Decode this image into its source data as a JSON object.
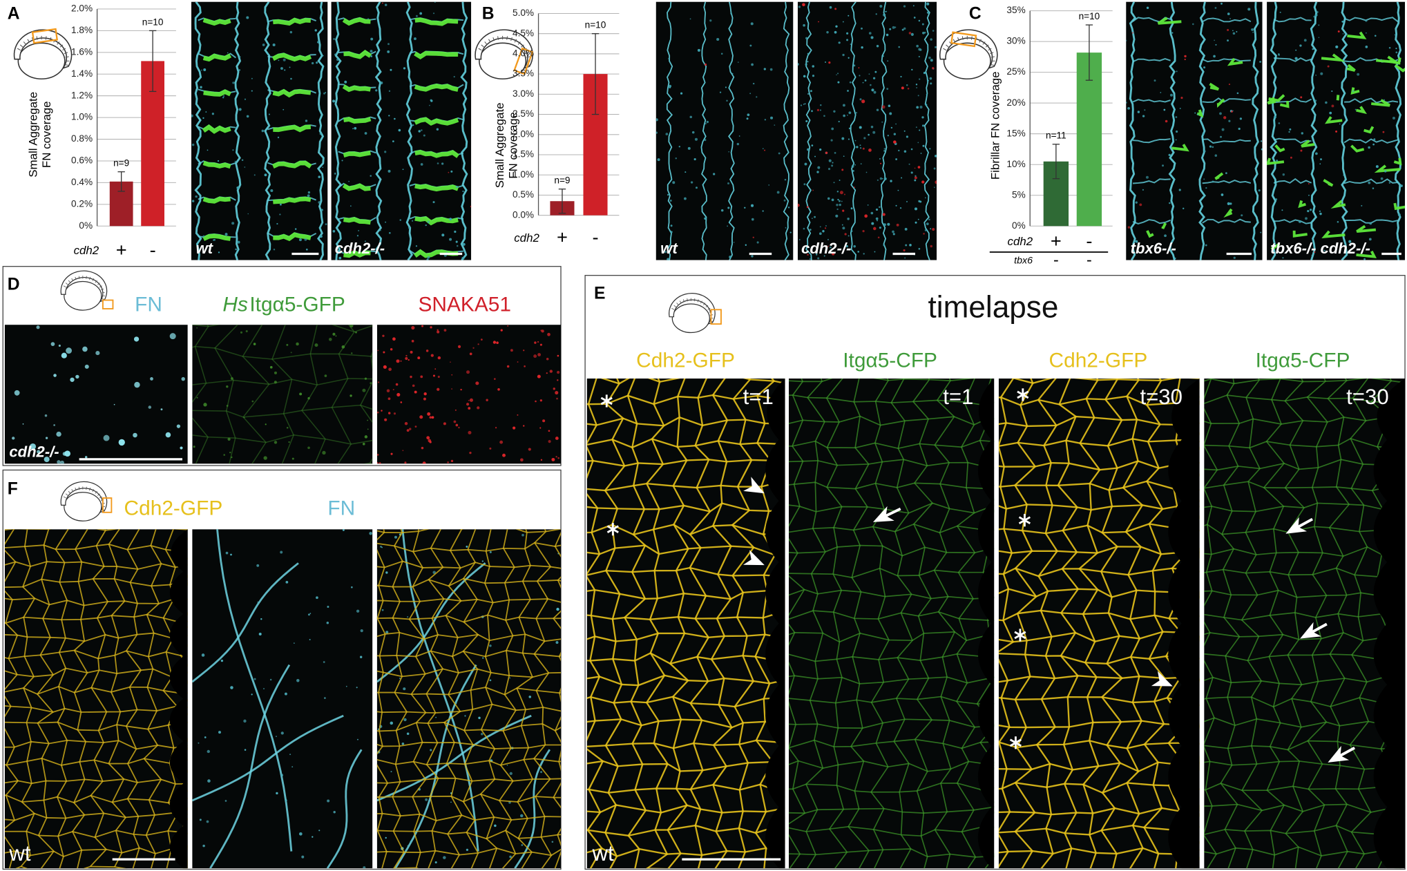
{
  "panel_labels": [
    "A",
    "B",
    "C",
    "D",
    "E",
    "F"
  ],
  "chart_data": [
    {
      "type": "bar",
      "y_label": [
        "Small Aggregate",
        "FN coverage"
      ],
      "x_label": "cdh2",
      "categories": [
        "+",
        "-"
      ],
      "values": [
        0.41,
        1.52
      ],
      "errors": [
        0.09,
        0.28
      ],
      "n_labels": [
        "n=9",
        "n=10"
      ],
      "colors": [
        "#9e1f27",
        "#cf2128"
      ],
      "ylim": [
        0,
        2
      ],
      "yticks": [
        {
          "value": 0,
          "label": "0%"
        },
        {
          "value": 0.2,
          "label": "0.2%"
        },
        {
          "value": 0.4,
          "label": "0.4%"
        },
        {
          "value": 0.6,
          "label": "0.6%"
        },
        {
          "value": 0.8,
          "label": "0.8%"
        },
        {
          "value": 1,
          "label": "1.0%"
        },
        {
          "value": 1.2,
          "label": "1.2%"
        },
        {
          "value": 1.4,
          "label": "1.4%"
        },
        {
          "value": 1.6,
          "label": "1.6%"
        },
        {
          "value": 1.8,
          "label": "1.8%"
        },
        {
          "value": 2,
          "label": "2.0%"
        }
      ],
      "grid": true
    },
    {
      "type": "bar",
      "y_label": [
        "Small Aggregate",
        "FN coverage"
      ],
      "x_label": "cdh2",
      "categories": [
        "+",
        "-"
      ],
      "values": [
        0.35,
        3.5
      ],
      "errors": [
        0.3,
        1.0
      ],
      "n_labels": [
        "n=9",
        "n=10"
      ],
      "colors": [
        "#9e1f27",
        "#cf2128"
      ],
      "ylim": [
        0,
        5
      ],
      "yticks": [
        {
          "value": 0,
          "label": "0.0%"
        },
        {
          "value": 0.5,
          "label": "0.5%"
        },
        {
          "value": 1,
          "label": "1.0%"
        },
        {
          "value": 1.5,
          "label": "1.5%"
        },
        {
          "value": 2,
          "label": "2.0%"
        },
        {
          "value": 2.5,
          "label": "2.5%"
        },
        {
          "value": 3,
          "label": "3.0%"
        },
        {
          "value": 3.5,
          "label": "3.5%"
        },
        {
          "value": 4,
          "label": "4.0%"
        },
        {
          "value": 4.5,
          "label": "4.5%"
        },
        {
          "value": 5,
          "label": "5.0%"
        }
      ],
      "grid": true
    },
    {
      "type": "bar",
      "y_label": [
        "Fibrillar FN coverage"
      ],
      "x_label": "cdh2",
      "categories": [
        "+",
        "-"
      ],
      "extra_row": {
        "label": "tbx6",
        "categories": [
          "-",
          "-"
        ]
      },
      "values": [
        10.5,
        28.2
      ],
      "errors": [
        2.8,
        4.5
      ],
      "n_labels": [
        "n=11",
        "n=10"
      ],
      "colors": [
        "#2f6a35",
        "#4fae4c"
      ],
      "ylim": [
        0,
        35
      ],
      "yticks": [
        {
          "value": 0,
          "label": "0%"
        },
        {
          "value": 5,
          "label": "5%"
        },
        {
          "value": 10,
          "label": "10%"
        },
        {
          "value": 15,
          "label": "15%"
        },
        {
          "value": 20,
          "label": "20%"
        },
        {
          "value": 25,
          "label": "25%"
        },
        {
          "value": 30,
          "label": "30%"
        },
        {
          "value": 35,
          "label": "35%"
        }
      ],
      "grid": true
    }
  ],
  "figure": {
    "A_images": [
      "wt",
      "cdh2-/-"
    ],
    "B_images": [
      "wt",
      "cdh2-/-"
    ],
    "C_images": [
      "tbx6-/-",
      "tbx6-/- cdh2-/-"
    ],
    "D": {
      "channels": [
        "FN",
        "Itgα5-GFP",
        "SNAKA51"
      ],
      "channel_prefix": "Hs",
      "genotype": "cdh2-/-"
    },
    "E": {
      "title": "timelapse",
      "channels": [
        "Cdh2-GFP",
        "Itgα5-CFP",
        "Cdh2-GFP",
        "Itgα5-CFP"
      ],
      "times": [
        "t=1",
        "t=1",
        "t=30",
        "t=30"
      ],
      "genotype": "wt"
    },
    "F": {
      "channels": [
        "Cdh2-GFP",
        "FN"
      ],
      "genotype": "wt"
    }
  }
}
